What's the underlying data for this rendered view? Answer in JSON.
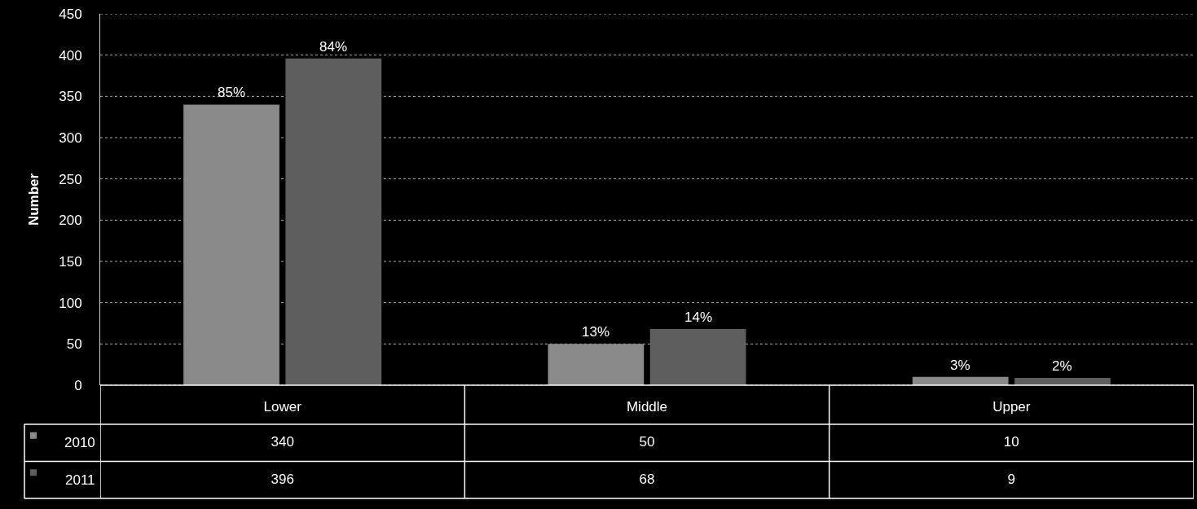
{
  "chart_data": {
    "type": "bar",
    "ylabel": "Number",
    "categories": [
      "Lower",
      "Middle",
      "Upper"
    ],
    "series": [
      {
        "name": "2010",
        "color": "#8a8a8a",
        "values": [
          340,
          50,
          10
        ]
      },
      {
        "name": "2011",
        "color": "#5e5e5e",
        "values": [
          396,
          68,
          9
        ]
      }
    ],
    "annotations": [
      {
        "text": "85%",
        "x": "Lower",
        "y": 340
      },
      {
        "text": "84%",
        "x": "Lower",
        "y": 396
      },
      {
        "text": "13%",
        "x": "Middle",
        "y": 50
      },
      {
        "text": "14%",
        "x": "Middle",
        "y": 68
      },
      {
        "text": "3%",
        "x": "Upper",
        "y": 10
      },
      {
        "text": "2%",
        "x": "Upper",
        "y": 9
      }
    ],
    "ylim": [
      0,
      450
    ],
    "yticks": [
      0,
      50,
      100,
      150,
      200,
      250,
      300,
      350,
      400,
      450
    ],
    "grid": "y",
    "legend": "bottom left",
    "data_labels": true
  }
}
